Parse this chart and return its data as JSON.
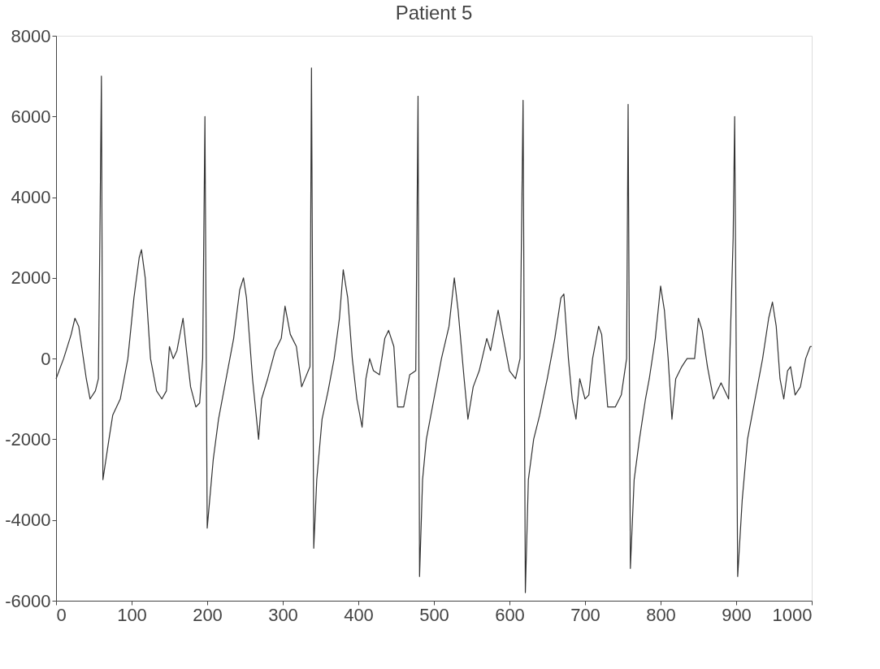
{
  "chart_data": {
    "type": "line",
    "title": "Patient 5",
    "x": [
      0,
      10,
      20,
      25,
      30,
      40,
      45,
      52,
      56,
      58,
      60,
      62,
      70,
      75,
      85,
      95,
      103,
      110,
      113,
      118,
      125,
      133,
      140,
      146,
      150,
      155,
      160,
      168,
      172,
      178,
      185,
      190,
      194,
      197,
      200,
      208,
      215,
      225,
      235,
      243,
      248,
      252,
      260,
      268,
      272,
      280,
      290,
      298,
      303,
      310,
      318,
      325,
      336,
      338,
      341,
      345,
      352,
      360,
      368,
      375,
      380,
      386,
      392,
      398,
      405,
      410,
      415,
      420,
      428,
      435,
      440,
      447,
      452,
      460,
      468,
      476,
      479,
      481,
      485,
      490,
      500,
      510,
      520,
      527,
      532,
      540,
      545,
      552,
      560,
      570,
      575,
      585,
      592,
      600,
      608,
      614,
      618,
      621,
      625,
      632,
      640,
      650,
      660,
      668,
      672,
      678,
      683,
      688,
      693,
      700,
      705,
      710,
      718,
      722,
      730,
      740,
      748,
      755,
      757,
      760,
      765,
      772,
      780,
      785,
      793,
      800,
      805,
      810,
      815,
      820,
      828,
      835,
      845,
      850,
      855,
      862,
      870,
      880,
      890,
      896,
      898,
      902,
      908,
      915,
      925,
      935,
      943,
      948,
      953,
      958,
      963,
      968,
      972,
      978,
      985,
      992,
      998,
      1000
    ],
    "series": [
      {
        "color": "#333333",
        "values": [
          -500,
          0,
          600,
          1000,
          800,
          -500,
          -1000,
          -800,
          -500,
          3000,
          7000,
          -3000,
          -2000,
          -1400,
          -1000,
          0,
          1500,
          2500,
          2700,
          2000,
          0,
          -800,
          -1000,
          -800,
          300,
          0,
          200,
          1000,
          300,
          -700,
          -1200,
          -1100,
          0,
          6000,
          -4200,
          -2500,
          -1500,
          -500,
          500,
          1700,
          2000,
          1500,
          -500,
          -2000,
          -1000,
          -500,
          200,
          500,
          1300,
          600,
          300,
          -700,
          -200,
          7200,
          -4700,
          -3000,
          -1500,
          -800,
          0,
          1000,
          2200,
          1500,
          0,
          -1000,
          -1700,
          -500,
          0,
          -300,
          -400,
          500,
          700,
          300,
          -1200,
          -1200,
          -400,
          -300,
          6500,
          -5400,
          -3000,
          -2000,
          -1000,
          0,
          800,
          2000,
          1200,
          -500,
          -1500,
          -700,
          -300,
          500,
          200,
          1200,
          500,
          -300,
          -500,
          0,
          6400,
          -5800,
          -3000,
          -2000,
          -1400,
          -500,
          500,
          1500,
          1600,
          0,
          -1000,
          -1500,
          -500,
          -1000,
          -900,
          0,
          800,
          600,
          -1200,
          -1200,
          -900,
          0,
          6300,
          -5200,
          -3000,
          -2000,
          -1000,
          -500,
          500,
          1800,
          1200,
          0,
          -1500,
          -500,
          -200,
          0,
          0,
          1000,
          700,
          -200,
          -1000,
          -600,
          -1000,
          3000,
          6000,
          -5400,
          -3500,
          -2000,
          -1000,
          0,
          1000,
          1400,
          800,
          -500,
          -1000,
          -300,
          -200,
          -900,
          -700,
          0,
          300,
          300
        ]
      }
    ],
    "xlim": [
      0,
      1000
    ],
    "xticks": [
      0,
      100,
      200,
      300,
      400,
      500,
      600,
      700,
      800,
      900,
      1000
    ],
    "ylim": [
      -6000,
      8000
    ],
    "yticks": [
      -6000,
      -4000,
      -2000,
      0,
      2000,
      4000,
      6000,
      8000
    ],
    "grid": false,
    "line_style": "solid",
    "marker": "none"
  }
}
